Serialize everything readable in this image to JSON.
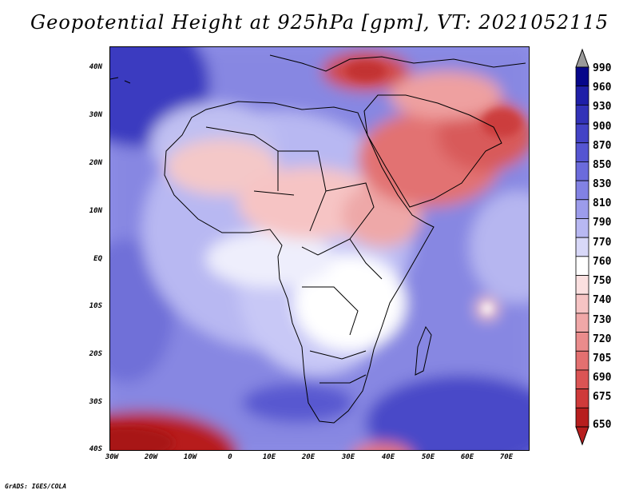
{
  "title": "Geopotential Height at 925hPa [gpm], VT: 2021052115",
  "y_ticks": [
    "40N",
    "30N",
    "20N",
    "10N",
    "EQ",
    "10S",
    "20S",
    "30S",
    "40S"
  ],
  "x_ticks": [
    "30W",
    "20W",
    "10W",
    "0",
    "10E",
    "20E",
    "30E",
    "40E",
    "50E",
    "60E",
    "70E"
  ],
  "colorbar": {
    "labels": [
      "990",
      "960",
      "930",
      "900",
      "870",
      "850",
      "830",
      "810",
      "790",
      "770",
      "760",
      "750",
      "740",
      "730",
      "720",
      "705",
      "690",
      "675",
      "650"
    ],
    "colors": [
      "#06068a",
      "#1f1fa8",
      "#3232b8",
      "#4343c6",
      "#5555d2",
      "#6b6bdc",
      "#8282e4",
      "#9c9ceb",
      "#b8b8f2",
      "#d8d8f8",
      "#ffffff",
      "#fbe0e0",
      "#f6c4c4",
      "#f0a8a8",
      "#ea8c8c",
      "#e37070",
      "#db5454",
      "#cf3a3a",
      "#b71e1e"
    ],
    "cap_top_color": "#9a9a9a",
    "cap_bottom_color": "#b71e1e"
  },
  "credit": "GrADS: IGES/COLA"
}
